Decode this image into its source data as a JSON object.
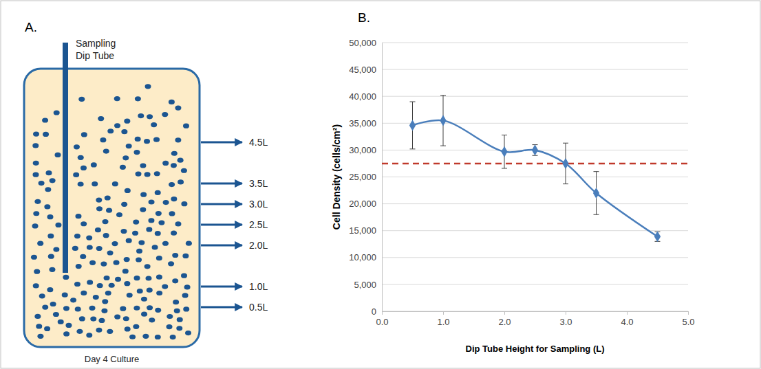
{
  "diagram": {
    "panel_label": "A.",
    "tube_label": [
      "Sampling",
      "Dip Tube"
    ],
    "levels": [
      "4.5L",
      "3.5L",
      "3.0L",
      "2.5L",
      "2.0L",
      "1.0L",
      "0.5L"
    ],
    "caption": "Day 4 Culture"
  },
  "chart_data": {
    "type": "line",
    "panel_label": "B.",
    "x_label": "Dip Tube Height for Sampling (L)",
    "y_label": "Cell Density (cells/cm²)",
    "x": [
      0.5,
      1.0,
      2.0,
      2.5,
      3.0,
      3.5,
      4.5
    ],
    "values": [
      34600,
      35500,
      29700,
      30000,
      27500,
      22000,
      13900
    ],
    "errors": [
      4400,
      4700,
      3100,
      1000,
      3800,
      4000,
      900
    ],
    "color": "#4a7ebb",
    "marker": "diamond",
    "reference_line": {
      "value": 27500,
      "color": "#c0392b",
      "line_style": "dashed"
    },
    "xlim": [
      0,
      5
    ],
    "xticks": [
      {
        "value": 0,
        "label": "0.0"
      },
      {
        "value": 1,
        "label": "1.0"
      },
      {
        "value": 2,
        "label": "2.0"
      },
      {
        "value": 3,
        "label": "3.0"
      },
      {
        "value": 4,
        "label": "4.0"
      },
      {
        "value": 5,
        "label": "5.0"
      }
    ],
    "ylim": [
      0,
      50000
    ],
    "yticks": [
      0,
      {
        "value": 5000,
        "label": "5,000"
      },
      {
        "value": 10000,
        "label": "10,000"
      },
      {
        "value": 15000,
        "label": "15,000"
      },
      {
        "value": 20000,
        "label": "20,000"
      },
      {
        "value": 25000,
        "label": "25,000"
      },
      {
        "value": 30000,
        "label": "30,000"
      },
      {
        "value": 35000,
        "label": "35,000"
      },
      {
        "value": 40000,
        "label": "40,000"
      },
      {
        "value": 45000,
        "label": "45,000"
      },
      {
        "value": 50000,
        "label": "50,000"
      }
    ],
    "grid": true
  }
}
